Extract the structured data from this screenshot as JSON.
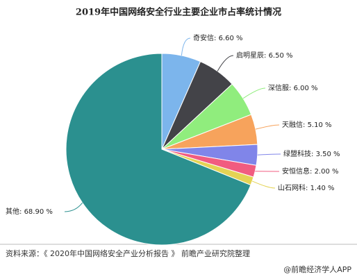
{
  "chart_data": {
    "type": "pie",
    "title": "2019年中国网络安全行业主要企业市占率统计情况",
    "categories": [
      "奇安信",
      "启明星辰",
      "深信服",
      "天融信",
      "绿盟科技",
      "安恒信息",
      "山石网科",
      "其他"
    ],
    "values": [
      6.6,
      6.5,
      6.0,
      5.1,
      3.5,
      2.0,
      1.4,
      68.9
    ],
    "value_labels": [
      "6.60 %",
      "6.50 %",
      "6.00 %",
      "5.10 %",
      "3.50 %",
      "2.00 %",
      "1.40 %",
      "68.90 %"
    ],
    "label_separator": ": ",
    "colors": [
      "#7cb5ec",
      "#434348",
      "#90ed7d",
      "#f7a35c",
      "#8085e9",
      "#f15c80",
      "#e4d354",
      "#2b908f"
    ],
    "source": "资料来源：《 2020年中国网络安全产业分析报告 》 前瞻产业研究院整理",
    "credit": "@前瞻经济学人APP"
  }
}
